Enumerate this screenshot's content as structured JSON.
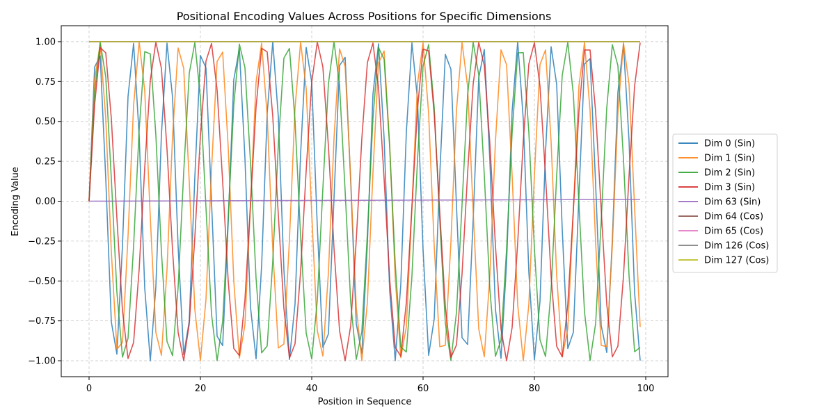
{
  "chart_data": {
    "type": "line",
    "title": "Positional Encoding Values Across Positions for Specific Dimensions",
    "xlabel": "Position in Sequence",
    "ylabel": "Encoding Value",
    "xlim": [
      -5,
      104
    ],
    "ylim": [
      -1.1,
      1.1
    ],
    "xticks": [
      0,
      20,
      40,
      60,
      80,
      100
    ],
    "yticks": [
      -1.0,
      -0.75,
      -0.5,
      -0.25,
      0.0,
      0.25,
      0.5,
      0.75,
      1.0
    ],
    "xtick_labels": [
      "0",
      "20",
      "40",
      "60",
      "80",
      "100"
    ],
    "ytick_labels": [
      "−1.00",
      "−0.75",
      "−0.50",
      "−0.25",
      "0.00",
      "0.25",
      "0.50",
      "0.75",
      "1.00"
    ],
    "grid": true,
    "legend_position": "outside-right",
    "positions": {
      "start": 0,
      "end": 99
    },
    "d_model": 128,
    "series": [
      {
        "name": "Dim 0 (Sin)",
        "color": "#1f77b4",
        "func": "sin",
        "dim": 0
      },
      {
        "name": "Dim 1 (Sin)",
        "color": "#ff7f0e",
        "func": "sin",
        "dim": 1
      },
      {
        "name": "Dim 2 (Sin)",
        "color": "#2ca02c",
        "func": "sin",
        "dim": 2
      },
      {
        "name": "Dim 3 (Sin)",
        "color": "#d62728",
        "func": "sin",
        "dim": 3
      },
      {
        "name": "Dim 63 (Sin)",
        "color": "#9467bd",
        "func": "sin",
        "dim": 63
      },
      {
        "name": "Dim 64 (Cos)",
        "color": "#8c564b",
        "func": "cos",
        "dim": 64
      },
      {
        "name": "Dim 65 (Cos)",
        "color": "#e377c2",
        "func": "cos",
        "dim": 65
      },
      {
        "name": "Dim 126 (Cos)",
        "color": "#7f7f7f",
        "func": "cos",
        "dim": 126
      },
      {
        "name": "Dim 127 (Cos)",
        "color": "#bcbd22",
        "func": "cos",
        "dim": 127
      }
    ]
  }
}
